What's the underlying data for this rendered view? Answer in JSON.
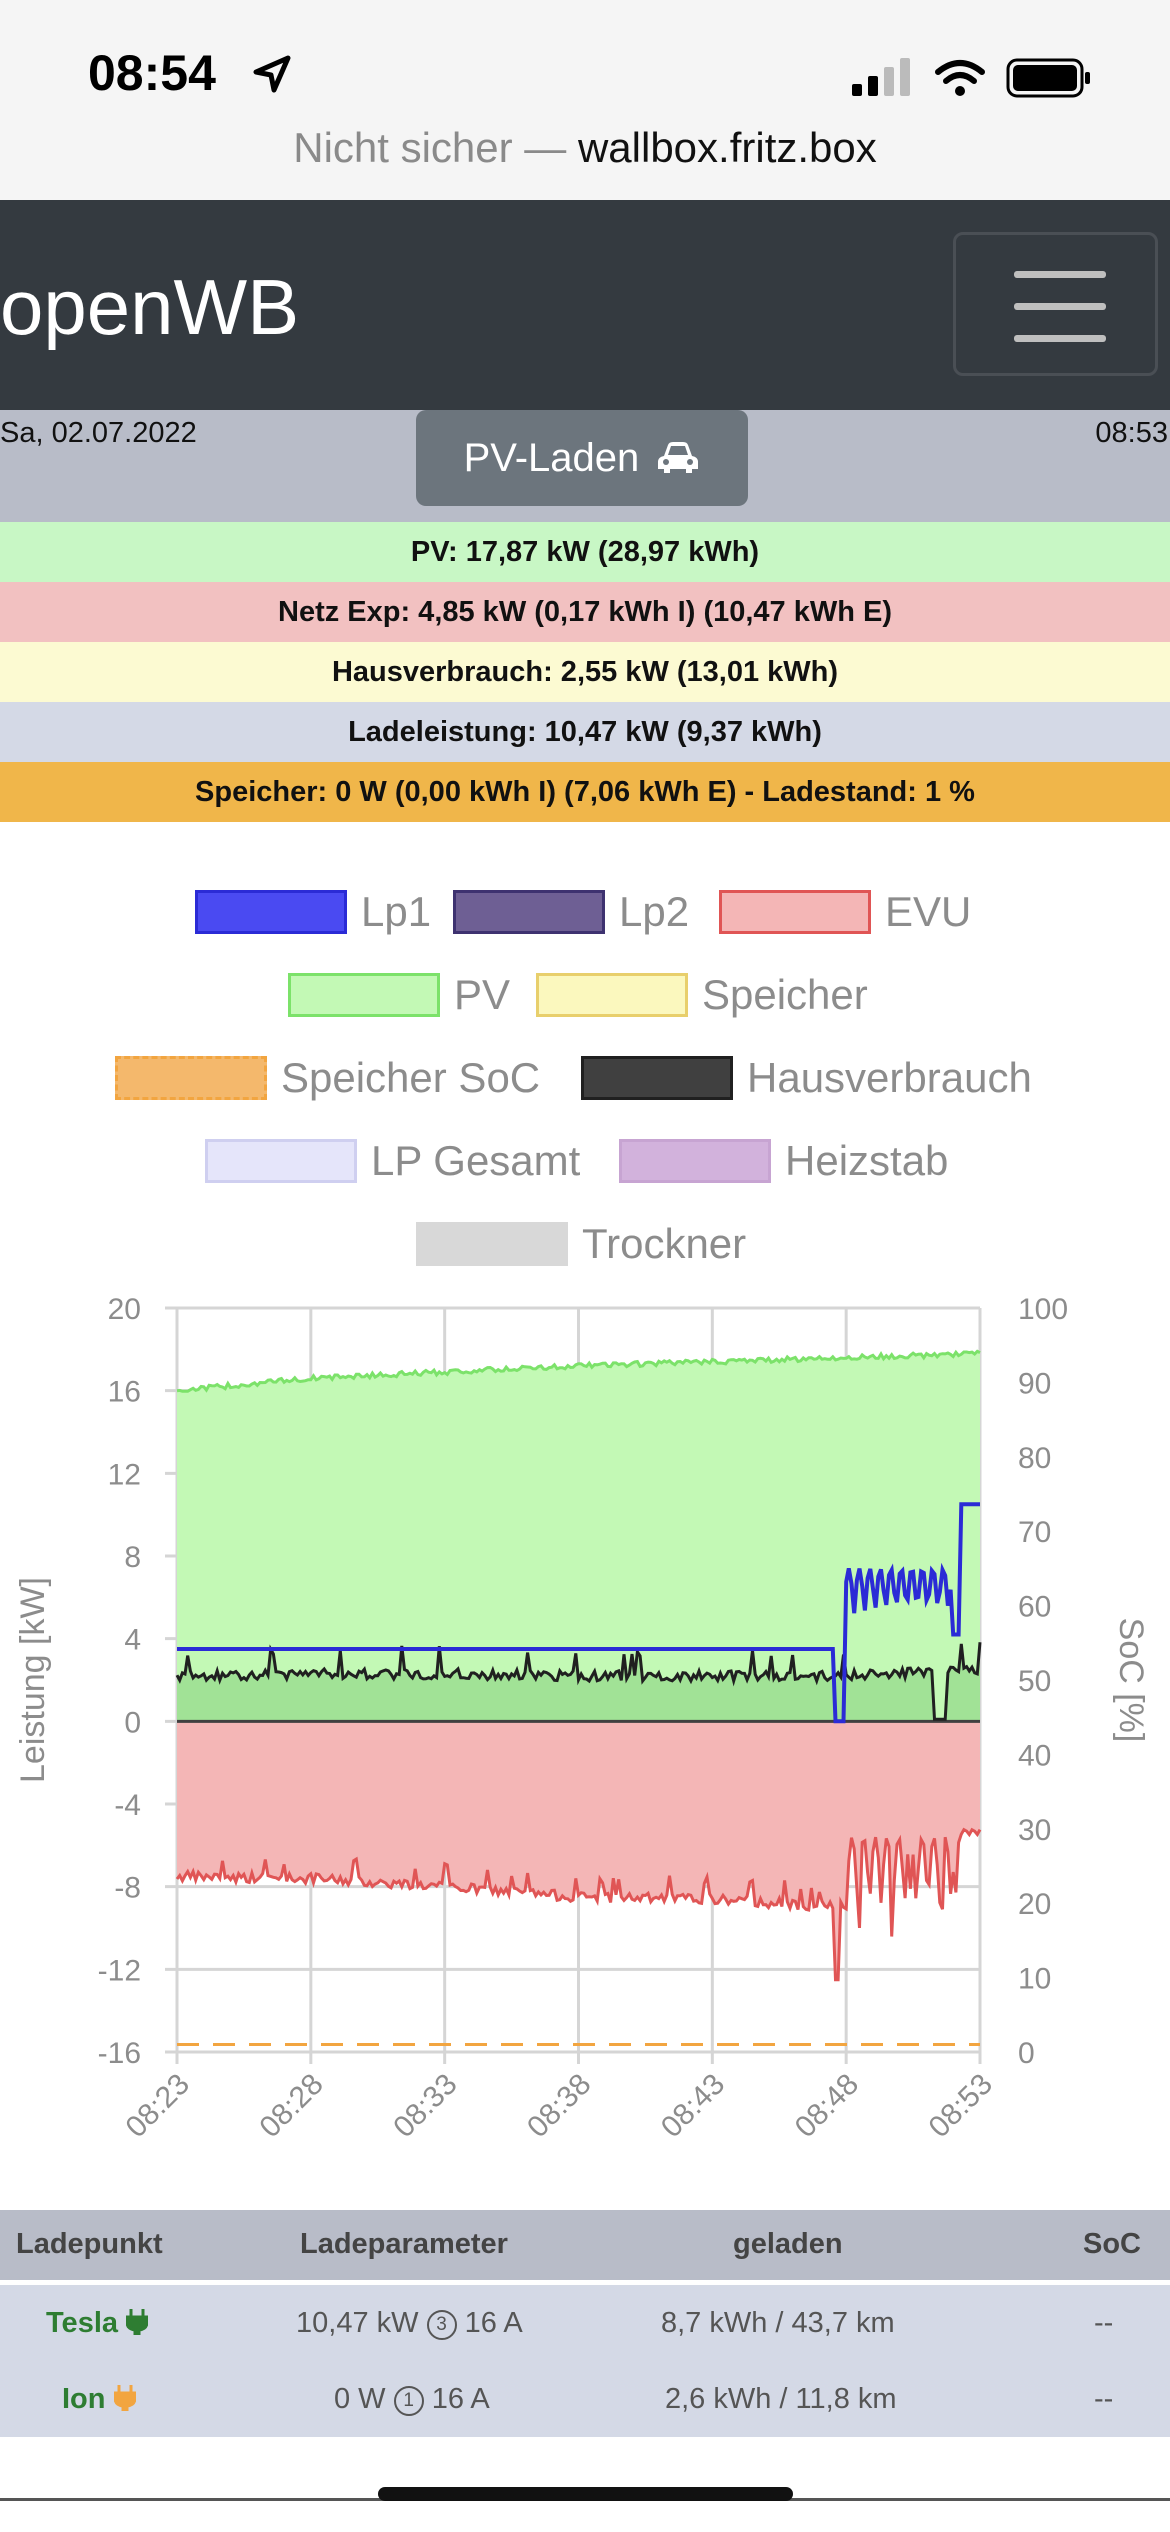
{
  "status": {
    "time": "08:54"
  },
  "browser": {
    "prefix": "Nicht sicher — ",
    "host": "wallbox.fritz.box"
  },
  "navbar": {
    "brand": "openWB"
  },
  "header": {
    "date": "Sa, 02.07.2022",
    "time": "08:53",
    "mode": "PV-Laden"
  },
  "info": {
    "pv": "PV: 17,87 kW (28,97 kWh)",
    "netz": "Netz Exp: 4,85 kW (0,17 kWh I) (10,47 kWh E)",
    "haus": "Hausverbrauch: 2,55 kW (13,01 kWh)",
    "lade": "Ladeleistung: 10,47 kW (9,37 kWh)",
    "speicher": "Speicher: 0 W (0,00 kWh I) (7,06 kWh E) - Ladestand: 1 %"
  },
  "colors": {
    "pv": "#c8f7c5",
    "netz": "#f2c1c1",
    "haus": "#fcfad2",
    "lade": "#d4d9e6",
    "speicher": "#f0b64a"
  },
  "chart_data": {
    "type": "line",
    "legend": [
      {
        "name": "Lp1",
        "fill": "#4a4af2",
        "border": "#2b2bd6"
      },
      {
        "name": "Lp2",
        "fill": "#6e5f94",
        "border": "#3e3270"
      },
      {
        "name": "EVU",
        "fill": "#f4b6b6",
        "border": "#e05555"
      },
      {
        "name": "PV",
        "fill": "#c3f9b5",
        "border": "#7ce26a"
      },
      {
        "name": "Speicher",
        "fill": "#fbf8be",
        "border": "#e8cf6c"
      },
      {
        "name": "Speicher SoC",
        "fill": "#f4b86c",
        "border": "#f2a540"
      },
      {
        "name": "Hausverbrauch",
        "fill": "#404040",
        "border": "#202020"
      },
      {
        "name": "LP Gesamt",
        "fill": "#e5e5fa",
        "border": "#cfcff0"
      },
      {
        "name": "Heizstab",
        "fill": "#d2b2dc",
        "border": "#c7a4d2"
      },
      {
        "name": "Trockner",
        "fill": "#d8d8d8",
        "border": "#d8d8d8"
      }
    ],
    "ylabel": "Leistung [kW]",
    "y2label": "SoC [%]",
    "ylim": [
      -16,
      20
    ],
    "y2lim": [
      0,
      100
    ],
    "yticks": [
      "20",
      "16",
      "12",
      "8",
      "4",
      "0",
      "-4",
      "-8",
      "-12",
      "-16"
    ],
    "y2ticks": [
      "100",
      "90",
      "80",
      "70",
      "60",
      "50",
      "40",
      "30",
      "20",
      "10",
      "0"
    ],
    "xticks": [
      "08:23",
      "08:28",
      "08:33",
      "08:38",
      "08:43",
      "08:48",
      "08:53"
    ],
    "series": [
      {
        "name": "PV",
        "x": [
          0,
          1,
          2,
          3,
          4,
          5,
          6
        ],
        "values": [
          16.0,
          16.6,
          16.9,
          17.2,
          17.4,
          17.6,
          17.8
        ]
      },
      {
        "name": "Lp1",
        "x": [
          0,
          1,
          2,
          3,
          4,
          5,
          5.9,
          6
        ],
        "values": [
          3.5,
          3.5,
          3.5,
          3.5,
          3.5,
          3.5,
          10.5,
          10.5
        ]
      },
      {
        "name": "Hausverbrauch",
        "x": [
          0,
          1,
          2,
          3,
          4,
          5,
          6
        ],
        "values": [
          2.2,
          2.3,
          2.3,
          2.2,
          2.2,
          2.2,
          2.5
        ]
      },
      {
        "name": "EVU",
        "x": [
          0,
          1,
          2,
          3,
          4,
          5,
          6
        ],
        "values": [
          -7.5,
          -7.6,
          -8.0,
          -8.5,
          -8.6,
          -9.0,
          -5.0
        ]
      },
      {
        "name": "Speicher SoC",
        "x": [
          0,
          6
        ],
        "values": [
          1,
          1
        ]
      }
    ]
  },
  "table": {
    "headers": [
      "Ladepunkt",
      "Ladeparameter",
      "geladen",
      "SoC"
    ],
    "rows": [
      {
        "name": "Tesla",
        "plug": "🔌",
        "power": "10,47 kW",
        "phases": "3",
        "amps": "16 A",
        "charged": "8,7 kWh / 43,7 km",
        "soc": "--"
      },
      {
        "name": "Ion",
        "plug": "🔌",
        "power": "0 W",
        "phases": "1",
        "amps": "16 A",
        "charged": "2,6 kWh / 11,8 km",
        "soc": "--"
      }
    ]
  }
}
